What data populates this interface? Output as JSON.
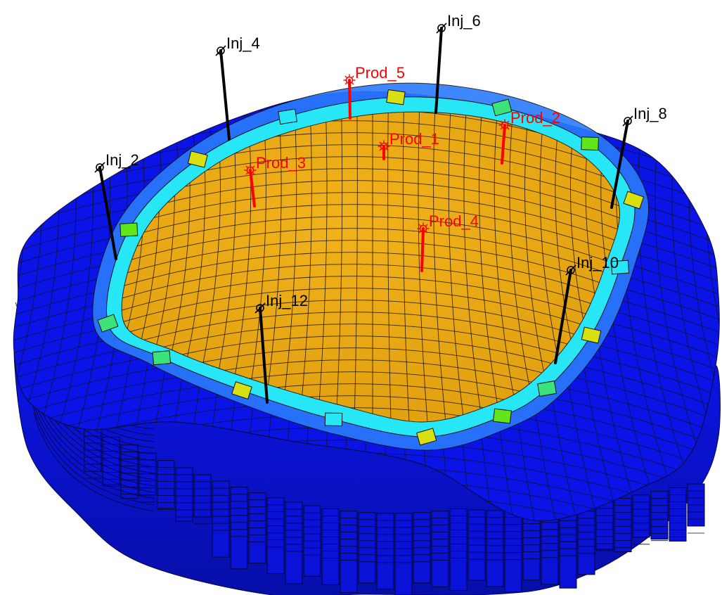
{
  "scene": {
    "background": "#ffffff",
    "colors": {
      "water": "#0b14e6",
      "oil": "#e9a40f",
      "transition": [
        "#2a7bff",
        "#27e6f5",
        "#3ce37b",
        "#62e51a",
        "#d8e012"
      ],
      "grid_line": "#111111",
      "injector": "#000000",
      "producer": "#ff0000"
    }
  },
  "wells": [
    {
      "name": "Inj_2",
      "type": "injector",
      "symbol": "injector-well-icon"
    },
    {
      "name": "Inj_4",
      "type": "injector",
      "symbol": "injector-well-icon"
    },
    {
      "name": "Inj_6",
      "type": "injector",
      "symbol": "injector-well-icon"
    },
    {
      "name": "Inj_8",
      "type": "injector",
      "symbol": "injector-well-icon"
    },
    {
      "name": "Inj_10",
      "type": "injector",
      "symbol": "injector-well-icon"
    },
    {
      "name": "Inj_12",
      "type": "injector",
      "symbol": "injector-well-icon"
    },
    {
      "name": "Prod_1",
      "type": "producer",
      "symbol": "producer-well-icon"
    },
    {
      "name": "Prod_2",
      "type": "producer",
      "symbol": "producer-well-icon"
    },
    {
      "name": "Prod_3",
      "type": "producer",
      "symbol": "producer-well-icon"
    },
    {
      "name": "Prod_4",
      "type": "producer",
      "symbol": "producer-well-icon"
    },
    {
      "name": "Prod_5",
      "type": "producer",
      "symbol": "producer-well-icon"
    }
  ]
}
